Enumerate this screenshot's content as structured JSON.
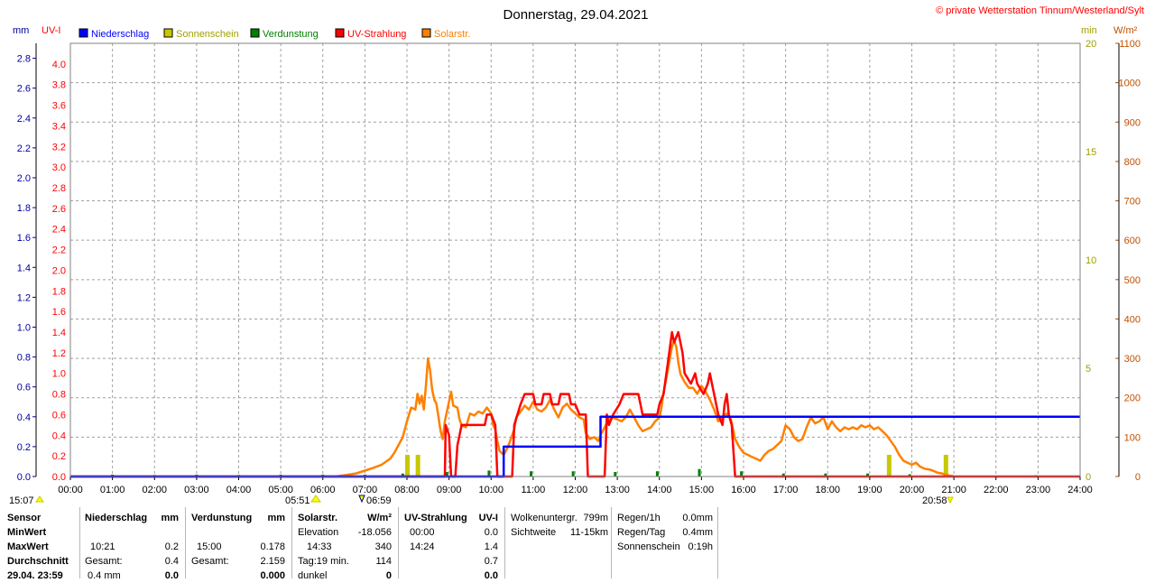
{
  "header": {
    "title": "Donnerstag, 29.04.2021",
    "copyright": "© private Wetterstation Tinnum/Westerland/Sylt"
  },
  "axes": {
    "mm_label": "mm",
    "uvi_label": "UV-I",
    "min_label": "min",
    "wm2_label": "W/m²"
  },
  "legend": [
    {
      "label": "Niederschlag",
      "color": "#0000ff"
    },
    {
      "label": "Sonnenschein",
      "color": "#c8c800"
    },
    {
      "label": "Verdunstung",
      "color": "#008000"
    },
    {
      "label": "UV-Strahlung",
      "color": "#ff0000"
    },
    {
      "label": "Solarstr.",
      "color": "#ff8000"
    }
  ],
  "markers": {
    "left_time": "15:07",
    "sunrise": "05:51",
    "moon": "06:59",
    "sunset": "20:58"
  },
  "chart_data": {
    "type": "line",
    "x_range": [
      "00:00",
      "24:00"
    ],
    "x_ticks": [
      "00:00",
      "01:00",
      "02:00",
      "03:00",
      "04:00",
      "05:00",
      "06:00",
      "07:00",
      "08:00",
      "09:00",
      "10:00",
      "11:00",
      "12:00",
      "13:00",
      "14:00",
      "15:00",
      "16:00",
      "17:00",
      "18:00",
      "19:00",
      "20:00",
      "21:00",
      "22:00",
      "23:00",
      "24:00"
    ],
    "mm_ticks": [
      "0.0",
      "0.2",
      "0.4",
      "0.6",
      "0.8",
      "1.0",
      "1.2",
      "1.4",
      "1.6",
      "1.8",
      "2.0",
      "2.2",
      "2.4",
      "2.6",
      "2.8"
    ],
    "uvi_ticks": [
      "0.0",
      "0.2",
      "0.4",
      "0.6",
      "0.8",
      "1.0",
      "1.2",
      "1.4",
      "1.6",
      "1.8",
      "2.0",
      "2.2",
      "2.4",
      "2.6",
      "2.8",
      "3.0",
      "3.2",
      "3.4",
      "3.6",
      "3.8",
      "4.0"
    ],
    "min_ticks": [
      "0",
      "5",
      "10",
      "15",
      "20"
    ],
    "wm2_ticks": [
      "0",
      "100",
      "200",
      "300",
      "400",
      "500",
      "600",
      "700",
      "800",
      "900",
      "1000",
      "1100"
    ],
    "mm_range": [
      0,
      2.9
    ],
    "uvi_range": [
      0,
      4.2
    ],
    "min_range": [
      0,
      20
    ],
    "wm2_range": [
      0,
      1100
    ],
    "grid": true,
    "series": [
      {
        "name": "Niederschlag",
        "unit": "mm",
        "color": "#0000ff",
        "points": [
          [
            0,
            0
          ],
          [
            10.3,
            0
          ],
          [
            10.3,
            0.2
          ],
          [
            12.6,
            0.2
          ],
          [
            12.6,
            0.4
          ],
          [
            24,
            0.4
          ]
        ]
      },
      {
        "name": "UV-Strahlung",
        "unit": "UV-I",
        "color": "#ff0000",
        "points": [
          [
            0,
            0
          ],
          [
            8.9,
            0
          ],
          [
            8.92,
            0.5
          ],
          [
            9.0,
            0.4
          ],
          [
            9.05,
            0
          ],
          [
            9.15,
            0
          ],
          [
            9.2,
            0.3
          ],
          [
            9.3,
            0.5
          ],
          [
            9.85,
            0.5
          ],
          [
            9.9,
            0.6
          ],
          [
            10.0,
            0.6
          ],
          [
            10.1,
            0.5
          ],
          [
            10.15,
            0
          ],
          [
            10.5,
            0
          ],
          [
            10.55,
            0.5
          ],
          [
            10.7,
            0.7
          ],
          [
            10.8,
            0.8
          ],
          [
            11.0,
            0.8
          ],
          [
            11.05,
            0.7
          ],
          [
            11.2,
            0.7
          ],
          [
            11.25,
            0.8
          ],
          [
            11.4,
            0.8
          ],
          [
            11.45,
            0.7
          ],
          [
            11.6,
            0.7
          ],
          [
            11.65,
            0.8
          ],
          [
            11.85,
            0.8
          ],
          [
            11.9,
            0.7
          ],
          [
            12.0,
            0.7
          ],
          [
            12.1,
            0.6
          ],
          [
            12.25,
            0.6
          ],
          [
            12.3,
            0
          ],
          [
            12.7,
            0
          ],
          [
            12.75,
            0.6
          ],
          [
            12.8,
            0.5
          ],
          [
            12.9,
            0.6
          ],
          [
            13.05,
            0.7
          ],
          [
            13.15,
            0.8
          ],
          [
            13.5,
            0.8
          ],
          [
            13.55,
            0.7
          ],
          [
            13.6,
            0.6
          ],
          [
            13.95,
            0.6
          ],
          [
            14.0,
            0.7
          ],
          [
            14.1,
            0.8
          ],
          [
            14.2,
            1.1
          ],
          [
            14.3,
            1.4
          ],
          [
            14.35,
            1.3
          ],
          [
            14.45,
            1.4
          ],
          [
            14.55,
            1.2
          ],
          [
            14.6,
            1.0
          ],
          [
            14.75,
            0.9
          ],
          [
            14.85,
            1.0
          ],
          [
            14.9,
            0.9
          ],
          [
            15.05,
            0.8
          ],
          [
            15.15,
            0.9
          ],
          [
            15.2,
            1.0
          ],
          [
            15.25,
            0.9
          ],
          [
            15.35,
            0.7
          ],
          [
            15.4,
            0.6
          ],
          [
            15.5,
            0.5
          ],
          [
            15.55,
            0.7
          ],
          [
            15.6,
            0.8
          ],
          [
            15.65,
            0.6
          ],
          [
            15.72,
            0.5
          ],
          [
            15.8,
            0
          ],
          [
            24,
            0
          ]
        ]
      },
      {
        "name": "Solarstr.",
        "unit": "W/m²",
        "color": "#ff8000",
        "points": [
          [
            6.3,
            0
          ],
          [
            6.5,
            3
          ],
          [
            6.8,
            8
          ],
          [
            7.0,
            15
          ],
          [
            7.2,
            22
          ],
          [
            7.4,
            30
          ],
          [
            7.6,
            45
          ],
          [
            7.7,
            60
          ],
          [
            7.8,
            80
          ],
          [
            7.9,
            100
          ],
          [
            8.0,
            140
          ],
          [
            8.1,
            175
          ],
          [
            8.2,
            170
          ],
          [
            8.25,
            210
          ],
          [
            8.3,
            185
          ],
          [
            8.35,
            205
          ],
          [
            8.4,
            170
          ],
          [
            8.45,
            230
          ],
          [
            8.5,
            300
          ],
          [
            8.55,
            270
          ],
          [
            8.6,
            220
          ],
          [
            8.65,
            195
          ],
          [
            8.7,
            185
          ],
          [
            8.75,
            150
          ],
          [
            8.8,
            115
          ],
          [
            8.85,
            95
          ],
          [
            8.9,
            140
          ],
          [
            9.0,
            190
          ],
          [
            9.05,
            215
          ],
          [
            9.1,
            180
          ],
          [
            9.2,
            175
          ],
          [
            9.25,
            145
          ],
          [
            9.3,
            130
          ],
          [
            9.4,
            125
          ],
          [
            9.5,
            160
          ],
          [
            9.6,
            155
          ],
          [
            9.7,
            165
          ],
          [
            9.8,
            160
          ],
          [
            9.9,
            175
          ],
          [
            10.0,
            160
          ],
          [
            10.05,
            130
          ],
          [
            10.1,
            120
          ],
          [
            10.15,
            90
          ],
          [
            10.2,
            65
          ],
          [
            10.3,
            55
          ],
          [
            10.4,
            75
          ],
          [
            10.5,
            105
          ],
          [
            10.55,
            120
          ],
          [
            10.6,
            150
          ],
          [
            10.7,
            165
          ],
          [
            10.8,
            180
          ],
          [
            10.9,
            170
          ],
          [
            11.0,
            190
          ],
          [
            11.1,
            170
          ],
          [
            11.2,
            165
          ],
          [
            11.3,
            175
          ],
          [
            11.4,
            195
          ],
          [
            11.5,
            170
          ],
          [
            11.6,
            150
          ],
          [
            11.7,
            175
          ],
          [
            11.8,
            185
          ],
          [
            11.9,
            170
          ],
          [
            12.0,
            160
          ],
          [
            12.1,
            150
          ],
          [
            12.2,
            145
          ],
          [
            12.25,
            110
          ],
          [
            12.35,
            95
          ],
          [
            12.45,
            100
          ],
          [
            12.55,
            90
          ],
          [
            12.6,
            105
          ],
          [
            12.7,
            125
          ],
          [
            12.8,
            145
          ],
          [
            12.9,
            150
          ],
          [
            13.0,
            145
          ],
          [
            13.1,
            140
          ],
          [
            13.2,
            150
          ],
          [
            13.3,
            170
          ],
          [
            13.4,
            150
          ],
          [
            13.5,
            130
          ],
          [
            13.6,
            115
          ],
          [
            13.7,
            120
          ],
          [
            13.8,
            125
          ],
          [
            13.9,
            140
          ],
          [
            14.0,
            150
          ],
          [
            14.05,
            175
          ],
          [
            14.1,
            215
          ],
          [
            14.15,
            240
          ],
          [
            14.2,
            270
          ],
          [
            14.25,
            300
          ],
          [
            14.3,
            330
          ],
          [
            14.35,
            345
          ],
          [
            14.4,
            330
          ],
          [
            14.45,
            290
          ],
          [
            14.5,
            260
          ],
          [
            14.55,
            250
          ],
          [
            14.6,
            240
          ],
          [
            14.7,
            225
          ],
          [
            14.8,
            225
          ],
          [
            14.9,
            210
          ],
          [
            15.0,
            230
          ],
          [
            15.1,
            215
          ],
          [
            15.2,
            195
          ],
          [
            15.3,
            170
          ],
          [
            15.4,
            140
          ],
          [
            15.5,
            150
          ],
          [
            15.6,
            160
          ],
          [
            15.7,
            145
          ],
          [
            15.8,
            95
          ],
          [
            15.9,
            75
          ],
          [
            16.0,
            60
          ],
          [
            16.1,
            55
          ],
          [
            16.2,
            50
          ],
          [
            16.3,
            45
          ],
          [
            16.4,
            40
          ],
          [
            16.5,
            55
          ],
          [
            16.6,
            65
          ],
          [
            16.7,
            70
          ],
          [
            16.8,
            80
          ],
          [
            16.9,
            90
          ],
          [
            17.0,
            130
          ],
          [
            17.1,
            120
          ],
          [
            17.2,
            100
          ],
          [
            17.3,
            90
          ],
          [
            17.4,
            95
          ],
          [
            17.5,
            125
          ],
          [
            17.6,
            150
          ],
          [
            17.7,
            135
          ],
          [
            17.8,
            140
          ],
          [
            17.9,
            150
          ],
          [
            18.0,
            120
          ],
          [
            18.1,
            140
          ],
          [
            18.2,
            125
          ],
          [
            18.3,
            115
          ],
          [
            18.4,
            125
          ],
          [
            18.5,
            120
          ],
          [
            18.6,
            125
          ],
          [
            18.7,
            120
          ],
          [
            18.8,
            130
          ],
          [
            18.9,
            125
          ],
          [
            19.0,
            130
          ],
          [
            19.1,
            120
          ],
          [
            19.2,
            125
          ],
          [
            19.3,
            115
          ],
          [
            19.4,
            105
          ],
          [
            19.5,
            90
          ],
          [
            19.6,
            75
          ],
          [
            19.7,
            55
          ],
          [
            19.8,
            40
          ],
          [
            19.9,
            35
          ],
          [
            20.0,
            30
          ],
          [
            20.1,
            35
          ],
          [
            20.2,
            25
          ],
          [
            20.3,
            20
          ],
          [
            20.4,
            18
          ],
          [
            20.5,
            15
          ],
          [
            20.6,
            10
          ],
          [
            20.7,
            8
          ],
          [
            20.8,
            5
          ],
          [
            20.9,
            2
          ],
          [
            21.0,
            0
          ]
        ]
      },
      {
        "name": "Sonnenschein",
        "unit": "min",
        "color": "#c8c800",
        "bars": [
          [
            8.0,
            1.0
          ],
          [
            8.25,
            1.0
          ],
          [
            19.45,
            1.0
          ],
          [
            20.8,
            1.0
          ]
        ]
      },
      {
        "name": "Verdunstung",
        "unit": "mm",
        "color": "#008000",
        "bars": [
          [
            1.0,
            0.012
          ],
          [
            2.0,
            0.01
          ],
          [
            3.0,
            0.012
          ],
          [
            4.0,
            0.01
          ],
          [
            5.0,
            0.012
          ],
          [
            6.0,
            0.012
          ],
          [
            7.0,
            0.012
          ],
          [
            7.9,
            0.02
          ],
          [
            8.95,
            0.03
          ],
          [
            9.95,
            0.04
          ],
          [
            10.95,
            0.035
          ],
          [
            11.95,
            0.035
          ],
          [
            12.95,
            0.03
          ],
          [
            13.95,
            0.035
          ],
          [
            14.95,
            0.05
          ],
          [
            15.95,
            0.035
          ],
          [
            16.95,
            0.02
          ],
          [
            17.95,
            0.02
          ],
          [
            18.95,
            0.02
          ],
          [
            19.95,
            0.015
          ],
          [
            20.95,
            0.01
          ],
          [
            21.95,
            0.005
          ],
          [
            22.95,
            0.008
          ]
        ]
      }
    ]
  },
  "stats": {
    "sensor": {
      "title": "Sensor",
      "rows": [
        "MinWert",
        "MaxWert",
        "Durchschnitt",
        "29.04. 23:59"
      ]
    },
    "niederschlag": {
      "title": "Niederschlag",
      "unit": "mm",
      "rows": [
        [
          "",
          ""
        ],
        [
          "10:21",
          "0.2"
        ],
        [
          "Gesamt:",
          "0.4"
        ],
        [
          "0.4 mm",
          "0.0"
        ]
      ]
    },
    "verdunstung": {
      "title": "Verdunstung",
      "unit": "mm",
      "rows": [
        [
          "",
          ""
        ],
        [
          "15:00",
          "0.178"
        ],
        [
          "Gesamt:",
          "2.159"
        ],
        [
          "",
          "0.000"
        ]
      ]
    },
    "solar": {
      "title": "Solarstr.",
      "unit": "W/m²",
      "rows": [
        [
          "Elevation",
          "-18.056"
        ],
        [
          "14:33",
          "340"
        ],
        [
          "Tag:19 min.",
          "114"
        ],
        [
          "dunkel",
          "0"
        ]
      ]
    },
    "uv": {
      "title": "UV-Strahlung",
      "unit": "UV-I",
      "rows": [
        [
          "00:00",
          "0.0"
        ],
        [
          "14:24",
          "1.4"
        ],
        [
          "",
          "0.7"
        ],
        [
          "",
          "0.0"
        ]
      ]
    },
    "wolken": {
      "rows": [
        [
          "Wolkenuntergr.",
          "799m"
        ],
        [
          "Sichtweite",
          "11-15km"
        ]
      ]
    },
    "regen": {
      "rows": [
        [
          "Regen/1h",
          "0.0mm"
        ],
        [
          "Regen/Tag",
          "0.4mm"
        ],
        [
          "Sonnenschein",
          "0:19h"
        ]
      ]
    }
  }
}
